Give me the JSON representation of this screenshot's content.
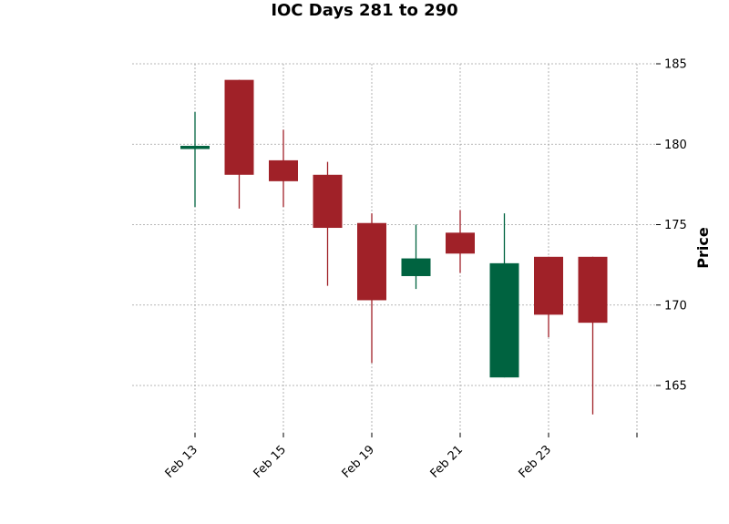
{
  "chart_data": {
    "type": "candlestick",
    "title": "IOC Days 281 to 290",
    "ylabel": "Price",
    "ylim": [
      162,
      185
    ],
    "y_ticks": [
      165,
      170,
      175,
      180,
      185
    ],
    "x_tick_labels": [
      "Feb 13",
      "Feb 15",
      "Feb 19",
      "Feb 21",
      "Feb 23"
    ],
    "grid": true,
    "colors": {
      "up": "#006340",
      "down": "#a02128"
    },
    "candles": [
      {
        "open": 179.7,
        "high": 182.0,
        "low": 176.1,
        "close": 179.9
      },
      {
        "open": 184.0,
        "high": 184.0,
        "low": 176.0,
        "close": 178.1
      },
      {
        "open": 179.0,
        "high": 180.9,
        "low": 176.1,
        "close": 177.7
      },
      {
        "open": 178.1,
        "high": 178.9,
        "low": 171.2,
        "close": 174.8
      },
      {
        "open": 175.1,
        "high": 175.7,
        "low": 166.4,
        "close": 170.3
      },
      {
        "open": 171.8,
        "high": 175.0,
        "low": 171.0,
        "close": 172.9
      },
      {
        "open": 174.5,
        "high": 175.9,
        "low": 172.0,
        "close": 173.2
      },
      {
        "open": 165.5,
        "high": 175.7,
        "low": 165.5,
        "close": 172.6
      },
      {
        "open": 173.0,
        "high": 173.0,
        "low": 168.0,
        "close": 169.4
      },
      {
        "open": 173.0,
        "high": 173.0,
        "low": 163.2,
        "close": 168.9
      }
    ]
  }
}
